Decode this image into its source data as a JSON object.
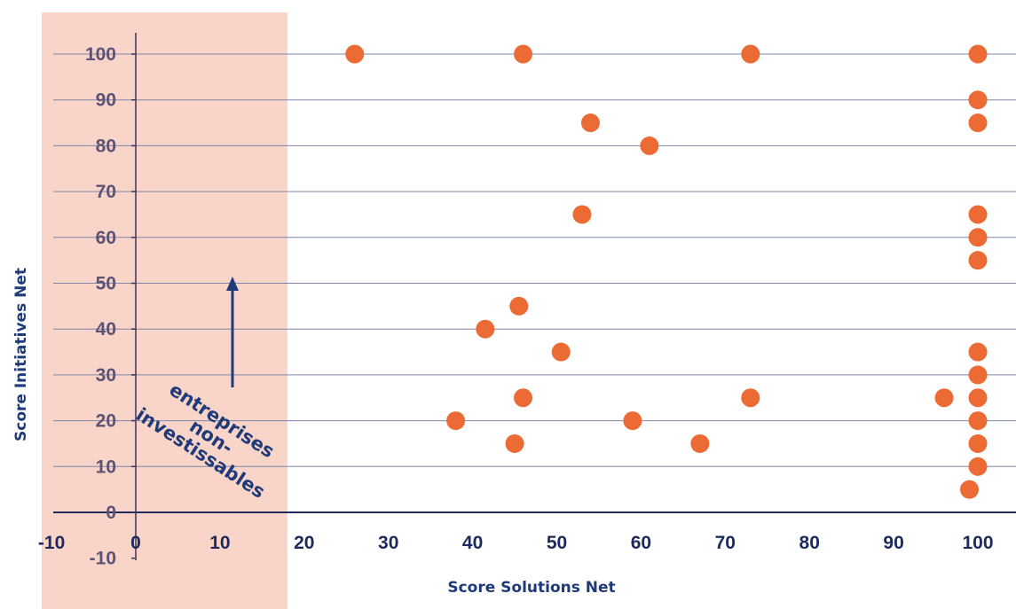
{
  "chart_data": {
    "type": "scatter",
    "xlabel": "Score Solutions Net",
    "ylabel": "Score Initiatives Net",
    "xlim": [
      -10,
      100
    ],
    "ylim": [
      -10,
      100
    ],
    "x_ticks": [
      -10,
      0,
      10,
      20,
      30,
      40,
      50,
      60,
      70,
      80,
      90,
      100
    ],
    "y_ticks": [
      -10,
      0,
      10,
      20,
      30,
      40,
      50,
      60,
      70,
      80,
      90,
      100
    ],
    "grid": "horizontal",
    "shaded_region": {
      "x_from": -10,
      "x_to": 18,
      "color": "#f8d5c8"
    },
    "marker_color": "#ec6a33",
    "annotation": {
      "lines": [
        "entreprises",
        "non-",
        "investissables"
      ],
      "arrow": "up"
    },
    "points": [
      {
        "x": 26,
        "y": 100
      },
      {
        "x": 46,
        "y": 100
      },
      {
        "x": 73,
        "y": 100
      },
      {
        "x": 100,
        "y": 100
      },
      {
        "x": 100,
        "y": 90
      },
      {
        "x": 54,
        "y": 85
      },
      {
        "x": 100,
        "y": 85
      },
      {
        "x": 61,
        "y": 80
      },
      {
        "x": 53,
        "y": 65
      },
      {
        "x": 100,
        "y": 65
      },
      {
        "x": 100,
        "y": 60
      },
      {
        "x": 100,
        "y": 55
      },
      {
        "x": 45.5,
        "y": 45
      },
      {
        "x": 41.5,
        "y": 40
      },
      {
        "x": 50.5,
        "y": 35
      },
      {
        "x": 100,
        "y": 35
      },
      {
        "x": 100,
        "y": 30
      },
      {
        "x": 46,
        "y": 25
      },
      {
        "x": 73,
        "y": 25
      },
      {
        "x": 96,
        "y": 25
      },
      {
        "x": 100,
        "y": 25
      },
      {
        "x": 38,
        "y": 20
      },
      {
        "x": 59,
        "y": 20
      },
      {
        "x": 100,
        "y": 20
      },
      {
        "x": 45,
        "y": 15
      },
      {
        "x": 67,
        "y": 15
      },
      {
        "x": 100,
        "y": 15
      },
      {
        "x": 100,
        "y": 10
      },
      {
        "x": 99,
        "y": 5
      }
    ]
  }
}
